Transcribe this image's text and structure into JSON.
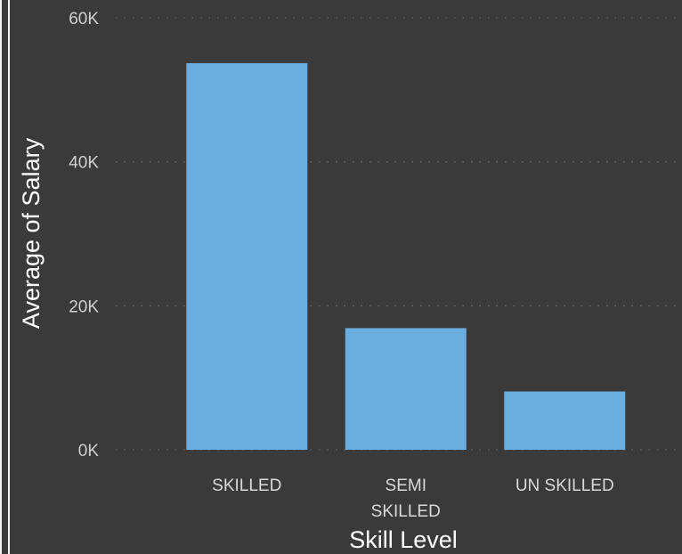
{
  "chart_data": {
    "type": "bar",
    "categories": [
      "SKILLED",
      "SEMI SKILLED",
      "UN SKILLED"
    ],
    "category_label_lines": [
      [
        "SKILLED"
      ],
      [
        "SEMI",
        "SKILLED"
      ],
      [
        "UN SKILLED"
      ]
    ],
    "values": [
      53700,
      16900,
      8100
    ],
    "ylim": [
      0,
      60000
    ],
    "yticks": [
      0,
      20000,
      40000,
      60000
    ],
    "ytick_labels": [
      "0K",
      "20K",
      "40K",
      "60K"
    ],
    "xlabel": "Skill Level",
    "ylabel": "Average of Salary",
    "grid": true,
    "colors": {
      "bar": "#6cade0",
      "background": "#3a3a3a",
      "grid": "#6a6a6a",
      "tick_text": "#cfcfcf",
      "title_text": "#ffffff"
    }
  }
}
